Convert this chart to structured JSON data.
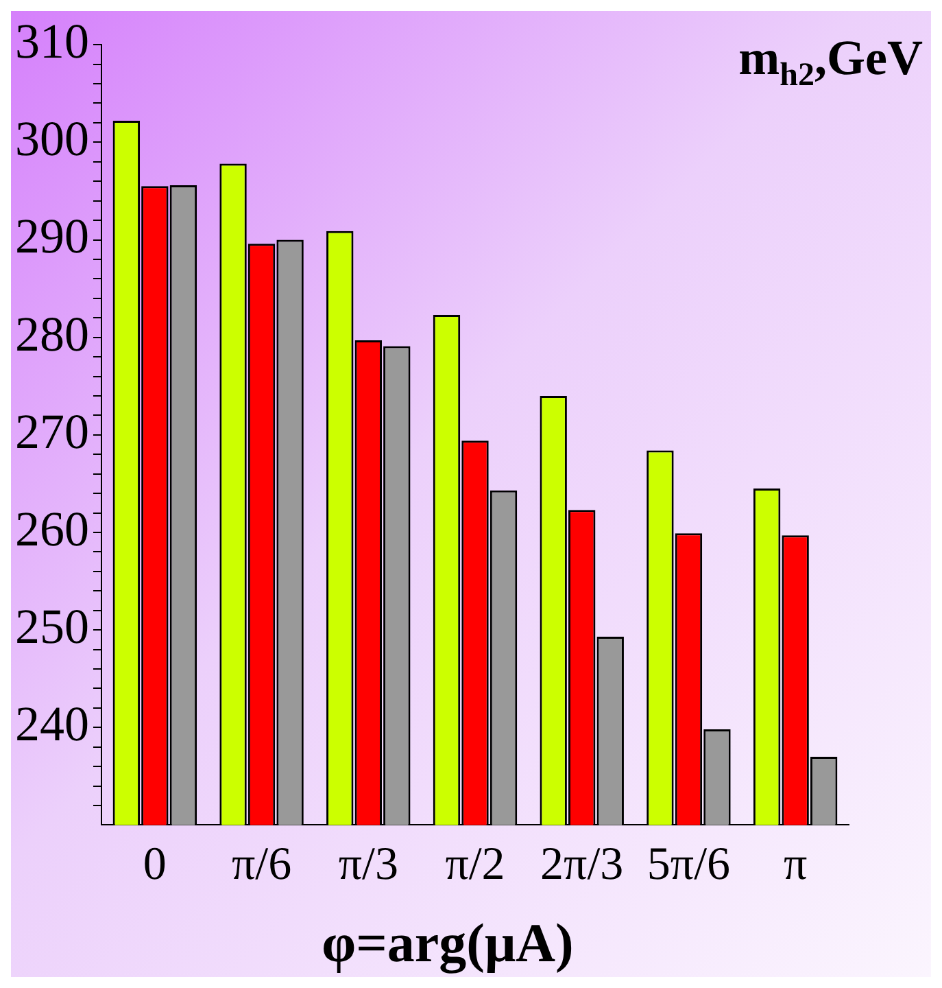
{
  "chart_data": {
    "type": "bar",
    "ylabel": "m$_{h2}$,GeV",
    "xlabel": "φ=arg(μA)",
    "categories": [
      "0",
      "π/6",
      "π/3",
      "π/2",
      "2π/3",
      "5π/6",
      "π"
    ],
    "series": [
      {
        "color": "#ccff00",
        "values": [
          302.2,
          297.8,
          290.9,
          282.3,
          274.0,
          268.4,
          264.5
        ]
      },
      {
        "color": "#ff0000",
        "values": [
          295.5,
          289.6,
          279.7,
          269.4,
          262.3,
          259.9,
          259.7
        ]
      },
      {
        "color": "#999999",
        "values": [
          295.6,
          290.0,
          279.1,
          264.3,
          249.3,
          239.8,
          237.0
        ]
      }
    ],
    "ylim": [
      230,
      310
    ],
    "yticks": [
      {
        "value": 232,
        "label": null
      },
      {
        "value": 234,
        "label": null
      },
      {
        "value": 236,
        "label": null
      },
      {
        "value": 238,
        "label": null
      },
      240,
      {
        "value": 242,
        "label": null
      },
      {
        "value": 244,
        "label": null
      },
      {
        "value": 246,
        "label": null
      },
      {
        "value": 248,
        "label": null
      },
      250,
      {
        "value": 252,
        "label": null
      },
      {
        "value": 254,
        "label": null
      },
      {
        "value": 256,
        "label": null
      },
      {
        "value": 258,
        "label": null
      },
      260,
      {
        "value": 262,
        "label": null
      },
      {
        "value": 264,
        "label": null
      },
      {
        "value": 266,
        "label": null
      },
      {
        "value": 268,
        "label": null
      },
      270,
      {
        "value": 272,
        "label": null
      },
      {
        "value": 274,
        "label": null
      },
      {
        "value": 276,
        "label": null
      },
      {
        "value": 278,
        "label": null
      },
      280,
      {
        "value": 282,
        "label": null
      },
      {
        "value": 284,
        "label": null
      },
      {
        "value": 286,
        "label": null
      },
      {
        "value": 288,
        "label": null
      },
      290,
      {
        "value": 292,
        "label": null
      },
      {
        "value": 294,
        "label": null
      },
      {
        "value": 296,
        "label": null
      },
      {
        "value": 298,
        "label": null
      },
      300,
      {
        "value": 302,
        "label": null
      },
      {
        "value": 304,
        "label": null
      },
      {
        "value": 306,
        "label": null
      },
      {
        "value": 308,
        "label": null
      },
      310
    ],
    "grid": false,
    "legend": false
  }
}
